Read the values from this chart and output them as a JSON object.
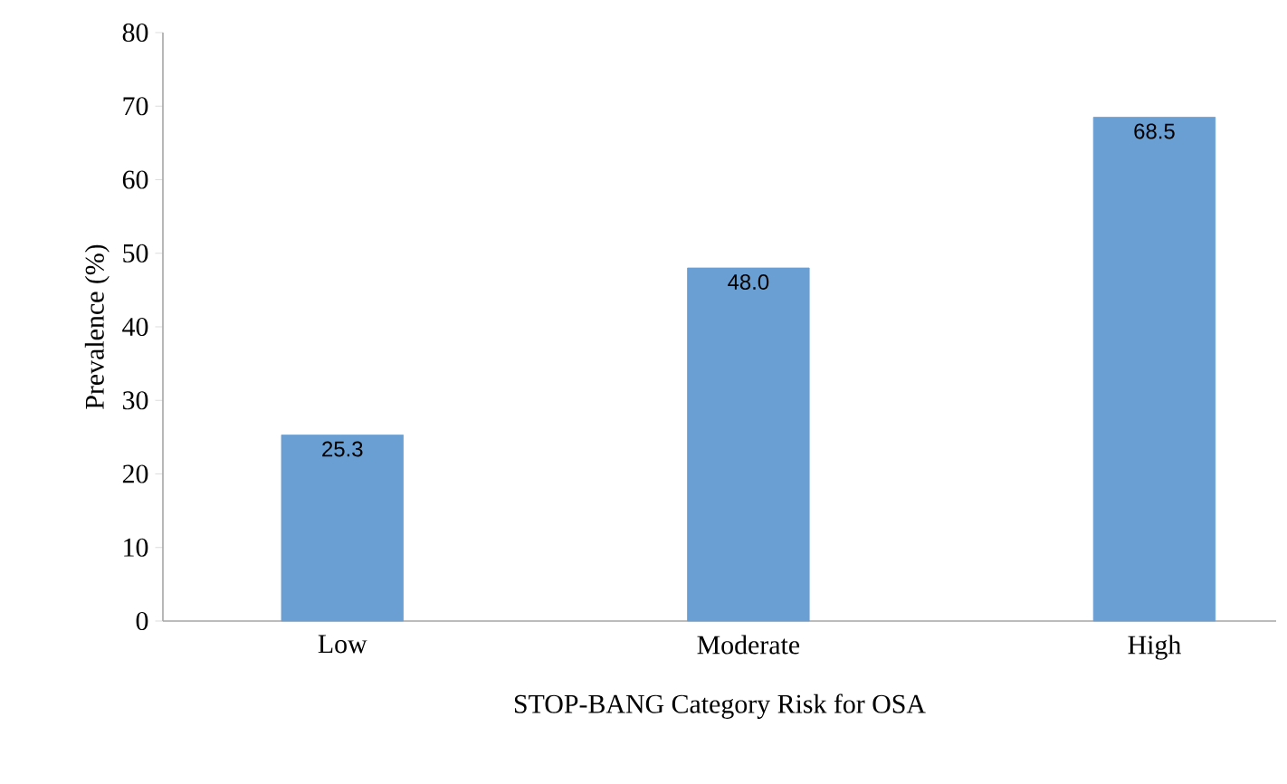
{
  "chart_data": {
    "type": "bar",
    "xlabel": "STOP-BANG Category Risk for OSA",
    "ylabel": "Prevalence (%)",
    "categories": [
      "Low",
      "Moderate",
      "High"
    ],
    "values": [
      25.3,
      48.0,
      68.5
    ],
    "value_labels": [
      "25.3",
      "48.0",
      "68.5"
    ],
    "color": "#6a9fd4",
    "ylim": [
      0,
      80
    ],
    "yticks": [
      0,
      10,
      20,
      30,
      40,
      50,
      60,
      70,
      80
    ],
    "grid": false
  }
}
